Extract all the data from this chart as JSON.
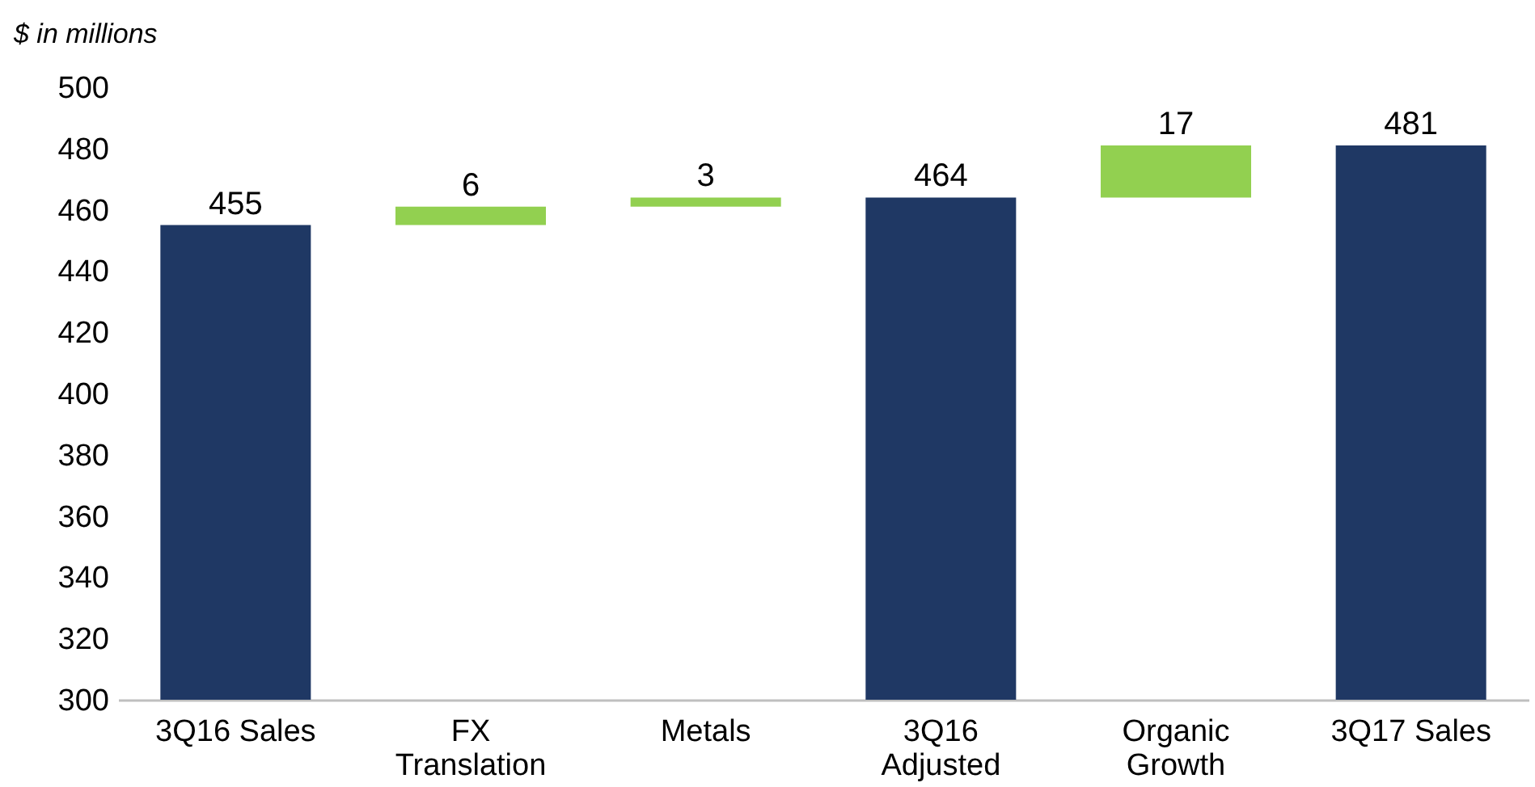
{
  "chart_data": {
    "type": "bar",
    "ylabel": "$ in millions",
    "categories": [
      "3Q16 Sales",
      "FX Translation",
      "Metals",
      "3Q16 Adjusted",
      "Organic Growth",
      "3Q17 Sales"
    ],
    "base": [
      300,
      455,
      461,
      300,
      464,
      300
    ],
    "values": [
      155,
      6,
      3,
      164,
      17,
      181
    ],
    "colors": [
      "#1f3864",
      "#92d050",
      "#92d050",
      "#1f3864",
      "#92d050",
      "#1f3864"
    ],
    "value_labels": [
      "455",
      "6",
      "3",
      "464",
      "17",
      "481"
    ],
    "ylim": [
      300,
      500
    ],
    "yticks": [
      300,
      320,
      340,
      360,
      380,
      400,
      420,
      440,
      460,
      480,
      500
    ],
    "grid": false
  }
}
